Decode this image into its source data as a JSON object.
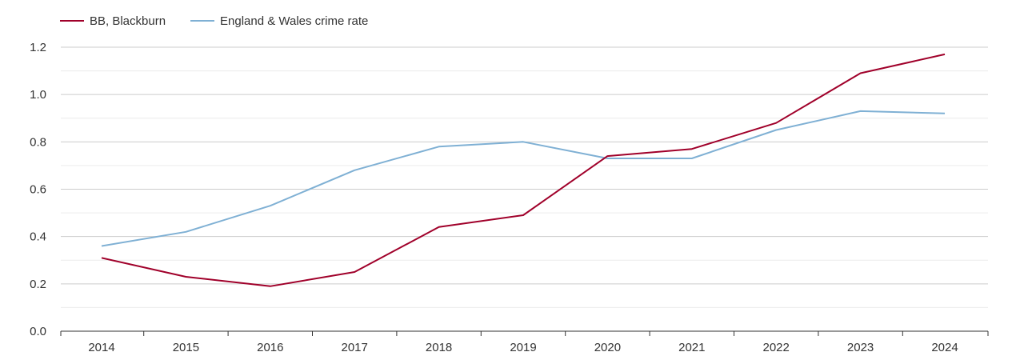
{
  "chart_data": {
    "type": "line",
    "title": "",
    "xlabel": "",
    "ylabel": "",
    "x": [
      "2014",
      "2015",
      "2016",
      "2017",
      "2018",
      "2019",
      "2020",
      "2021",
      "2022",
      "2023",
      "2024"
    ],
    "ylim": [
      0,
      1.2
    ],
    "yticks": [
      "0.0",
      "0.2",
      "0.4",
      "0.6",
      "0.8",
      "1.0",
      "1.2"
    ],
    "grid": true,
    "legend_position": "top-left",
    "series": [
      {
        "name": "BB, Blackburn",
        "color": "#a0002a",
        "values": [
          0.31,
          0.23,
          0.19,
          0.25,
          0.44,
          0.49,
          0.74,
          0.77,
          0.88,
          1.09,
          1.17
        ]
      },
      {
        "name": "England & Wales crime rate",
        "color": "#7fb0d4",
        "values": [
          0.36,
          0.42,
          0.53,
          0.68,
          0.78,
          0.8,
          0.73,
          0.73,
          0.85,
          0.93,
          0.92
        ]
      }
    ]
  }
}
